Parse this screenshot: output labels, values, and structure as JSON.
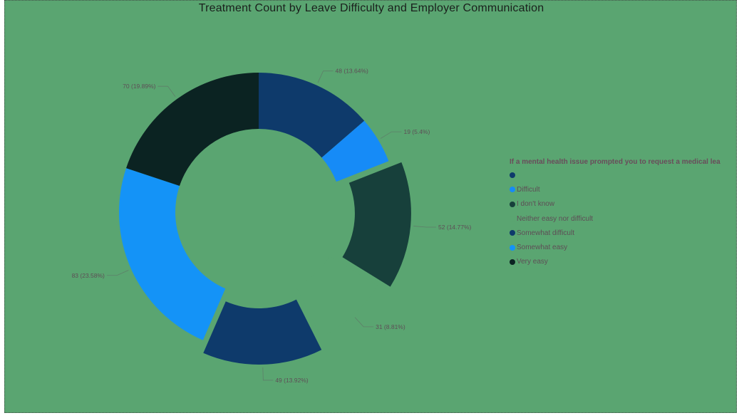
{
  "chart_data": {
    "type": "pie",
    "title": "Treatment Count by Leave Difficulty and Employer Communication",
    "legend_title": "If a mental health issue prompted you to request a medical lea",
    "legend_position": "right",
    "slices": [
      {
        "value": 48,
        "label": "48 (13.64%)",
        "color": "#0e3a6b",
        "explode": false
      },
      {
        "value": 19,
        "label": "19 (5.4%)",
        "color": "#168bf7",
        "explode": false
      },
      {
        "value": 52,
        "label": "52 (14.77%)",
        "color": "#17403b",
        "explode": true
      },
      {
        "value": 31,
        "label": "31 (8.81%)",
        "color": "#5aa571",
        "explode": false
      },
      {
        "value": 49,
        "label": "49 (13.92%)",
        "color": "#0e3a6b",
        "explode": true
      },
      {
        "value": 83,
        "label": "83 (23.58%)",
        "color": "#1493f7",
        "explode": false
      },
      {
        "value": 70,
        "label": "70 (19.89%)",
        "color": "#0b2322",
        "explode": false
      }
    ],
    "legend": [
      {
        "label": "",
        "color": "#0e3a6b"
      },
      {
        "label": "Difficult",
        "color": "#168bf7"
      },
      {
        "label": "I don't know",
        "color": "#17403b"
      },
      {
        "label": "Neither easy nor difficult",
        "color": "#5aa571"
      },
      {
        "label": "Somewhat difficult",
        "color": "#0e3a6b"
      },
      {
        "label": "Somewhat easy",
        "color": "#1493f7"
      },
      {
        "label": "Very easy",
        "color": "#0b2322"
      }
    ]
  }
}
